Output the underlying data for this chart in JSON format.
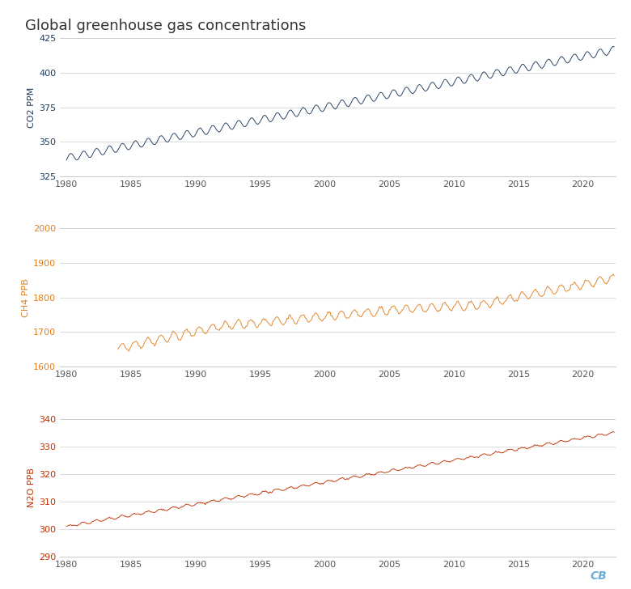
{
  "title": "Global greenhouse gas concentrations",
  "title_fontsize": 13,
  "title_color": "#333333",
  "background_color": "#ffffff",
  "grid_color": "#cccccc",
  "co2_color": "#1a3a5c",
  "ch4_color": "#e08020",
  "n2o_color": "#c03000",
  "ylabel_co2": "CO2 PPM",
  "ylabel_ch4": "CH4 PPB",
  "ylabel_n2o": "N2O PPB",
  "co2_ylim": [
    325,
    425
  ],
  "co2_yticks": [
    325,
    350,
    375,
    400,
    425
  ],
  "ch4_ylim": [
    1600,
    2000
  ],
  "ch4_yticks": [
    1600,
    1700,
    1800,
    1900,
    2000
  ],
  "n2o_ylim": [
    290,
    340
  ],
  "n2o_yticks": [
    290,
    300,
    310,
    320,
    330,
    340
  ],
  "xlim": [
    1979.5,
    2022.5
  ],
  "xticks": [
    1980,
    1985,
    1990,
    1995,
    2000,
    2005,
    2010,
    2015,
    2020
  ],
  "watermark": "CB",
  "watermark_color": "#6baed6",
  "ylabel_fontsize": 8,
  "tick_fontsize": 8,
  "xlabel_color": "#555555"
}
